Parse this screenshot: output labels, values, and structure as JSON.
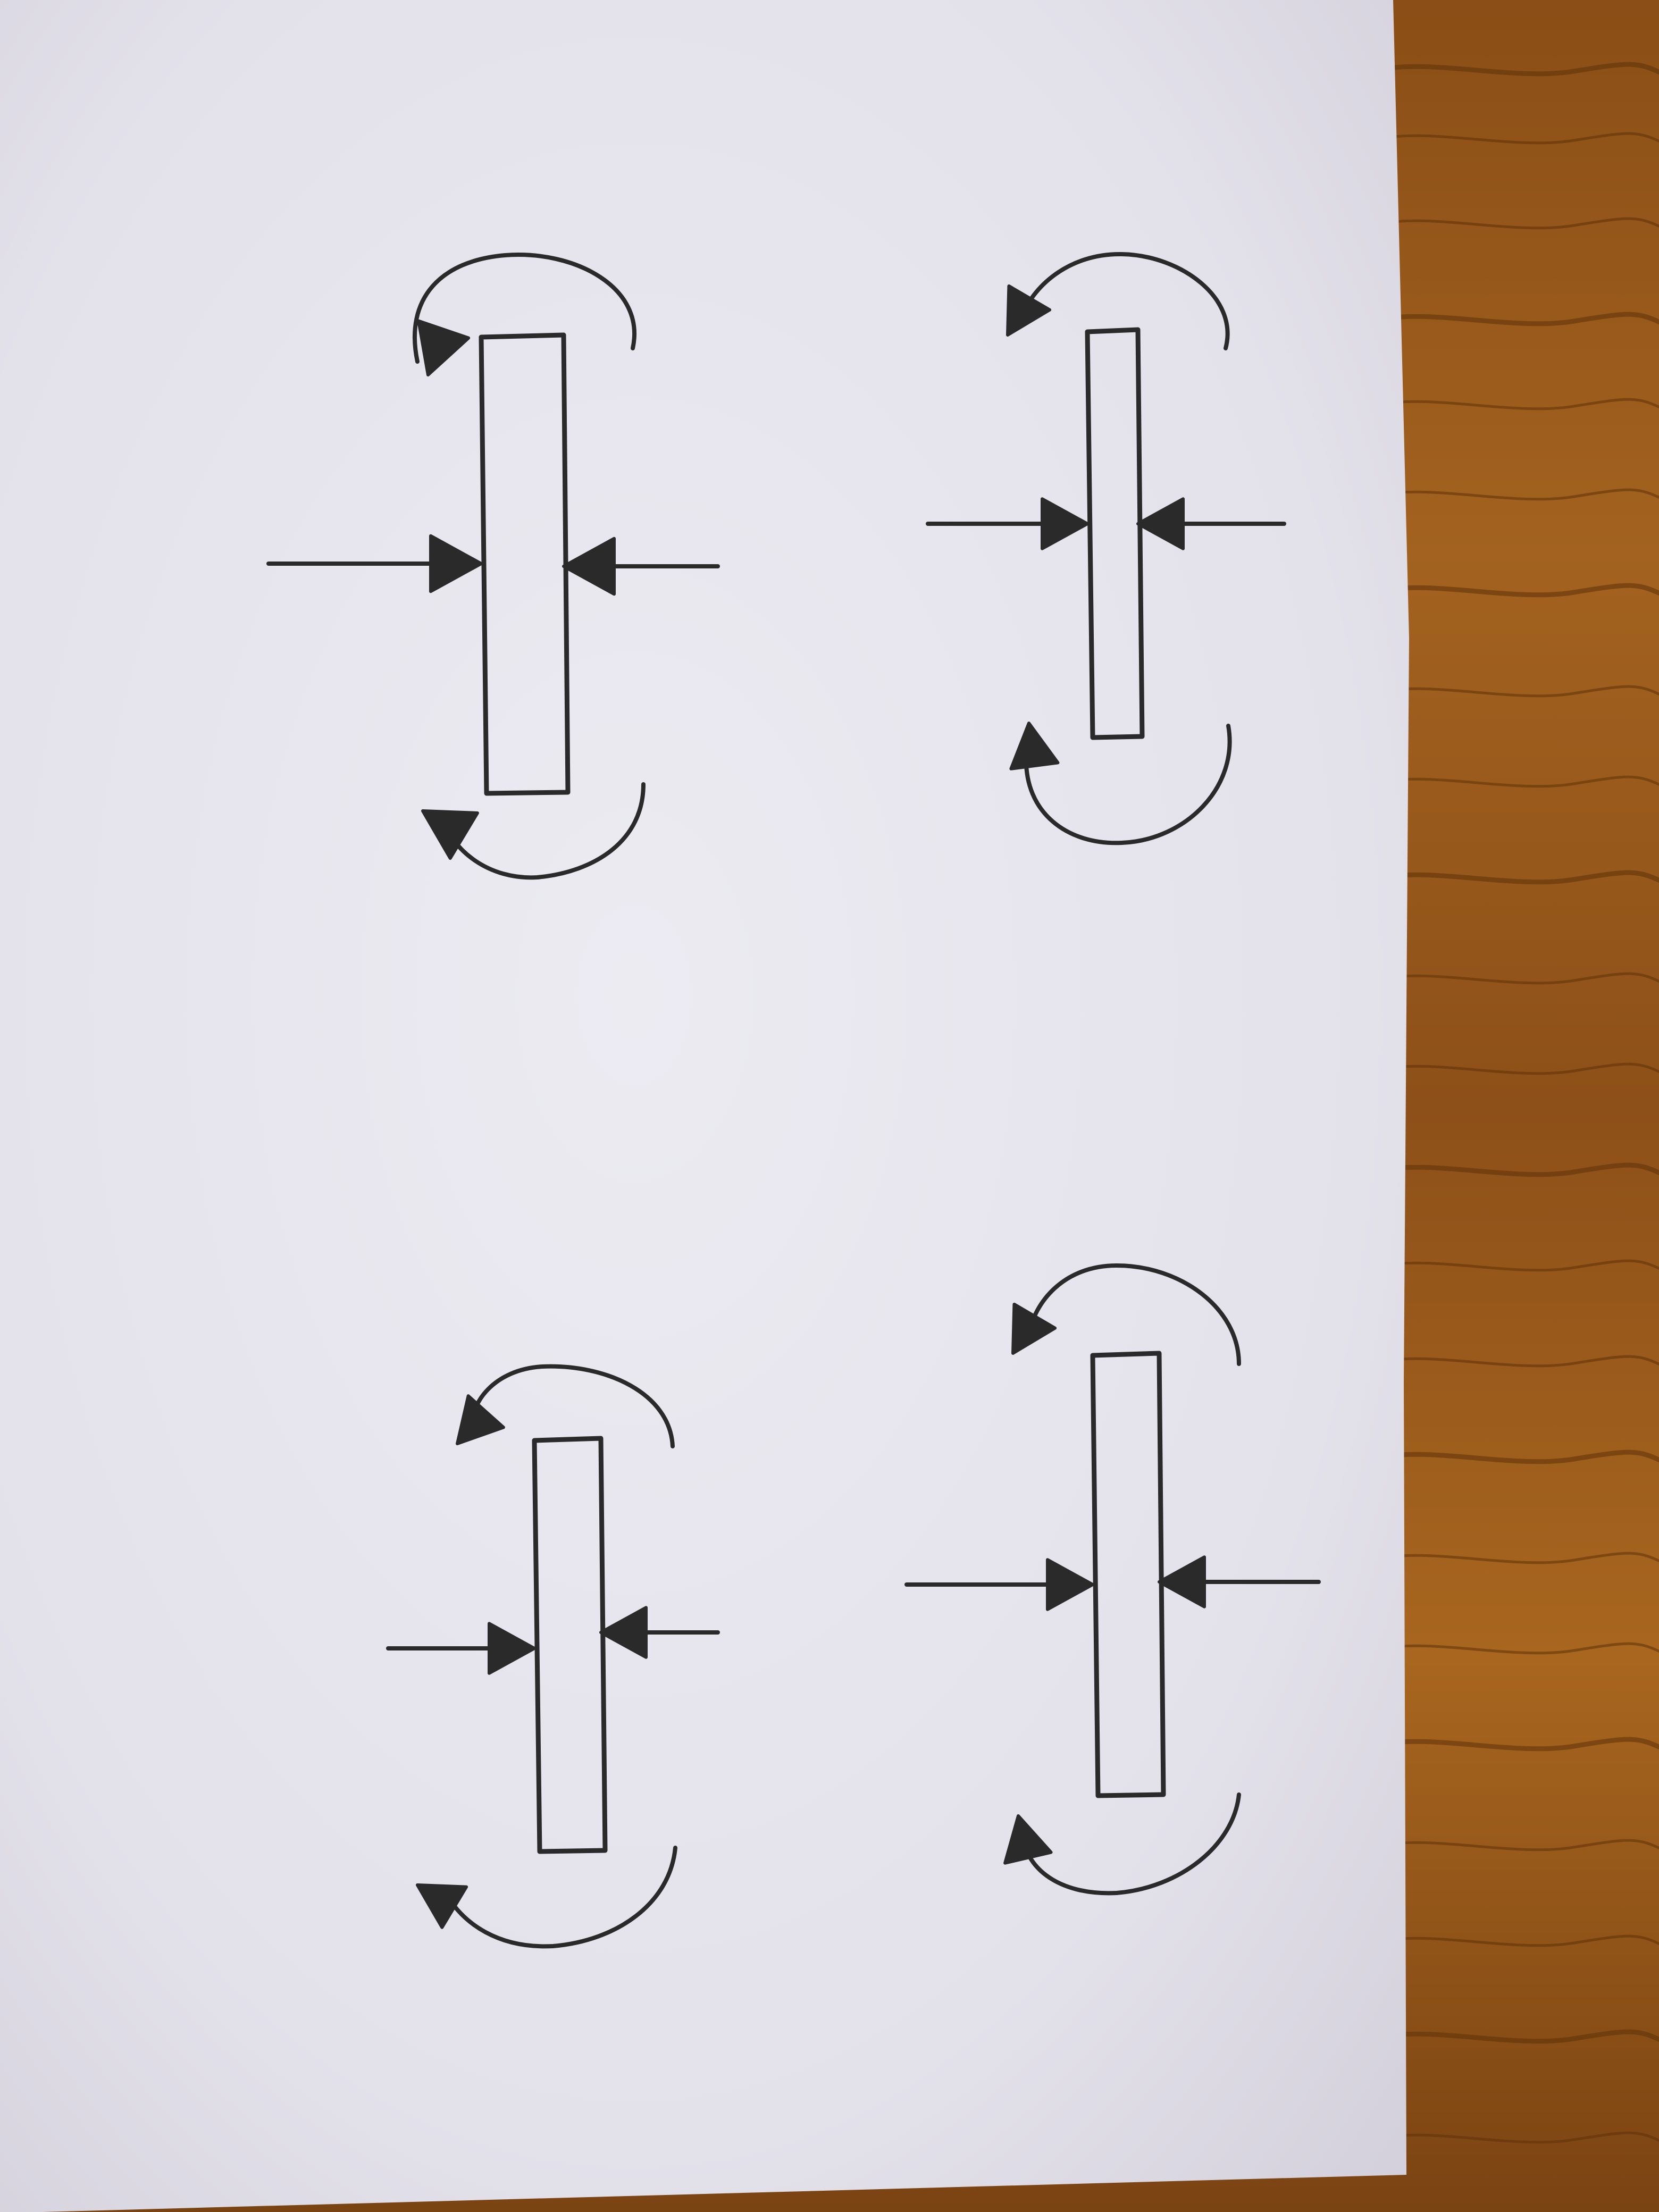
{
  "photo": {
    "paper_color": "#e7e5ee",
    "paper_shadow_color": "#d6d4de",
    "wood_color": "#9a5a1e",
    "wood_grain_color": "#5c3208",
    "ink_color": "#2a2a2a"
  },
  "drawings": [
    {
      "name": "sketch-top-left",
      "compression_arrows": 2,
      "rotation_arrows": 2,
      "bar_shape": "rectangle"
    },
    {
      "name": "sketch-top-right",
      "compression_arrows": 2,
      "rotation_arrows": 2,
      "bar_shape": "rectangle"
    },
    {
      "name": "sketch-bottom-left",
      "compression_arrows": 2,
      "rotation_arrows": 2,
      "bar_shape": "rectangle"
    },
    {
      "name": "sketch-bottom-right",
      "compression_arrows": 2,
      "rotation_arrows": 2,
      "bar_shape": "rectangle"
    }
  ]
}
